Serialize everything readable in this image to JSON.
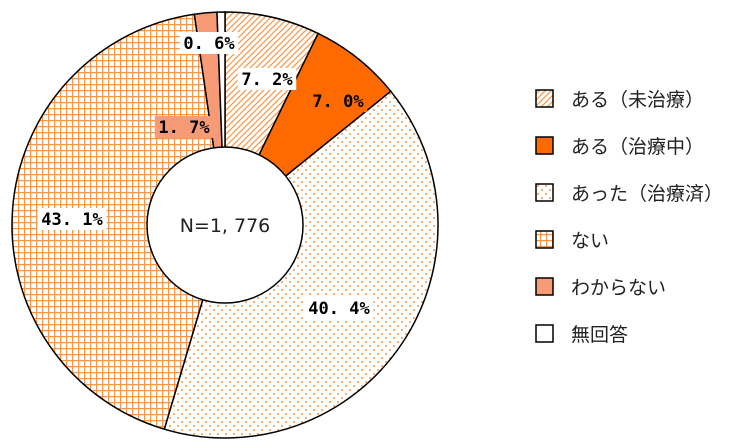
{
  "chart_data": {
    "type": "pie",
    "variant": "donut",
    "center_label": "N=1, 776",
    "start_angle_deg": 0,
    "direction": "clockwise",
    "legend_placement": "right",
    "slices": [
      {
        "label": "ある（未治療）",
        "value": 7.2,
        "value_label": "7. 2%",
        "pattern": "diagonal-hatch",
        "color": "#F79646"
      },
      {
        "label": "ある（治療中）",
        "value": 7.0,
        "value_label": "7. 0%",
        "pattern": "solid",
        "color": "#FF6A00"
      },
      {
        "label": "あった（治療済）",
        "value": 40.4,
        "value_label": "40. 4%",
        "pattern": "dots",
        "color": "#F79646"
      },
      {
        "label": "ない",
        "value": 43.1,
        "value_label": "43. 1%",
        "pattern": "grid",
        "color": "#F79646"
      },
      {
        "label": "わからない",
        "value": 1.7,
        "value_label": "1. 7%",
        "pattern": "solid",
        "color": "#F79A76"
      },
      {
        "label": "無回答",
        "value": 0.6,
        "value_label": "0. 6%",
        "pattern": "none",
        "color": "#FFFFFF"
      }
    ]
  }
}
